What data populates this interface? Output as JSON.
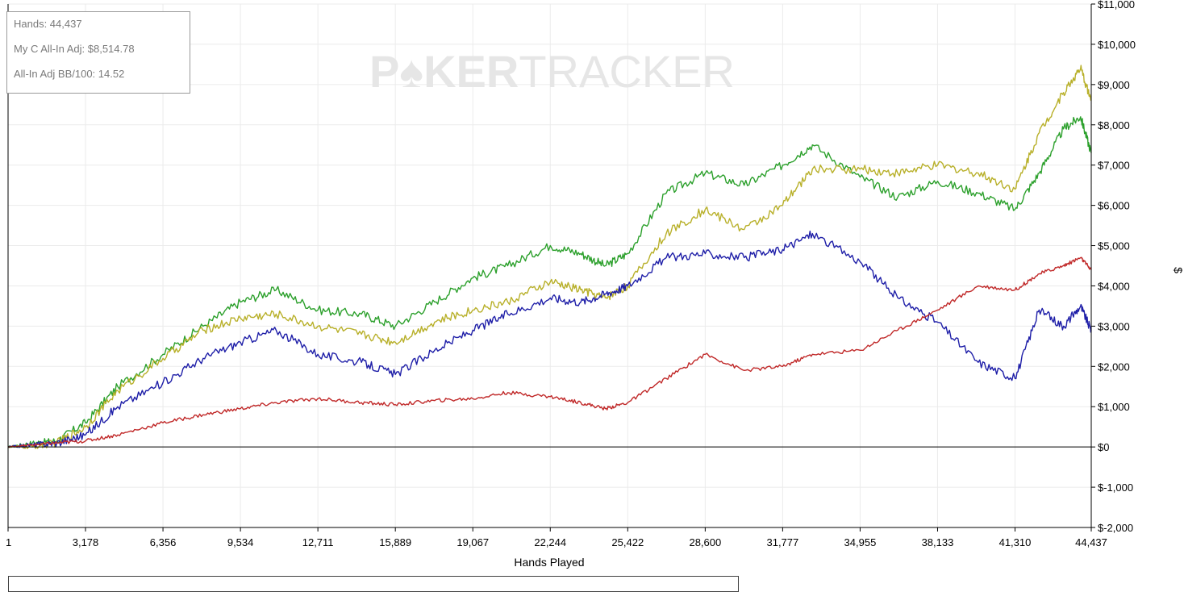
{
  "info_box": {
    "hands": "Hands: 44,437",
    "my_c_allin_adj": "My C All-In Adj: $8,514.78",
    "allin_adj_bb100": "All-In Adj BB/100: 14.52"
  },
  "watermark": {
    "bold_part": "P♠KER",
    "light_part": "TRACKER"
  },
  "chart_data": {
    "type": "line",
    "xlabel": "Hands Played",
    "ylabel": "$",
    "xlim": [
      1,
      44437
    ],
    "ylim": [
      -2000,
      11000
    ],
    "x_ticks": [
      1,
      3178,
      6356,
      9534,
      12711,
      15889,
      19067,
      22244,
      25422,
      28600,
      31777,
      34955,
      38133,
      41310,
      44437
    ],
    "x_tick_labels": [
      "1",
      "3,178",
      "6,356",
      "9,534",
      "12,711",
      "15,889",
      "19,067",
      "22,244",
      "25,422",
      "28,600",
      "31,777",
      "34,955",
      "38,133",
      "41,310",
      "44,437"
    ],
    "y_ticks": [
      -2000,
      -1000,
      0,
      1000,
      2000,
      3000,
      4000,
      5000,
      6000,
      7000,
      8000,
      9000,
      10000,
      11000
    ],
    "y_tick_labels": [
      "$-2,000",
      "$-1,000",
      "$0",
      "$1,000",
      "$2,000",
      "$3,000",
      "$4,000",
      "$5,000",
      "$6,000",
      "$7,000",
      "$8,000",
      "$9,000",
      "$10,000",
      "$11,000"
    ],
    "grid": true,
    "x": [
      1,
      1000,
      2000,
      3178,
      4500,
      6356,
      8000,
      9534,
      11000,
      12711,
      14500,
      15889,
      17500,
      19067,
      20500,
      22244,
      23500,
      24500,
      25422,
      27000,
      28600,
      30200,
      31777,
      33000,
      34955,
      36500,
      38133,
      39800,
      41310,
      42300,
      43300,
      44000,
      44437
    ],
    "series": [
      {
        "color": "#2ca02c",
        "values": [
          0,
          100,
          150,
          600,
          1500,
          2300,
          3000,
          3600,
          3900,
          3400,
          3300,
          3000,
          3600,
          4200,
          4500,
          5000,
          4800,
          4500,
          4800,
          6300,
          6800,
          6500,
          7000,
          7500,
          6700,
          6200,
          6600,
          6300,
          5900,
          6800,
          7900,
          8200,
          7300
        ]
      },
      {
        "color": "#b8b02a",
        "values": [
          0,
          0,
          100,
          500,
          1400,
          2200,
          2900,
          3200,
          3300,
          3000,
          2800,
          2600,
          3100,
          3400,
          3600,
          4100,
          3900,
          3700,
          4000,
          5300,
          5900,
          5400,
          6000,
          6900,
          6900,
          6800,
          7000,
          6800,
          6400,
          7800,
          8800,
          9400,
          8600
        ]
      },
      {
        "color": "#1f1fa8",
        "values": [
          0,
          50,
          100,
          300,
          1000,
          1600,
          2200,
          2600,
          2900,
          2300,
          2100,
          1800,
          2400,
          2900,
          3300,
          3700,
          3600,
          3800,
          4000,
          4700,
          4800,
          4700,
          4900,
          5300,
          4600,
          3700,
          3100,
          2100,
          1700,
          3400,
          3000,
          3500,
          2900
        ]
      },
      {
        "color": "#c02828",
        "values": [
          0,
          50,
          100,
          150,
          300,
          600,
          800,
          950,
          1100,
          1200,
          1100,
          1050,
          1150,
          1200,
          1350,
          1250,
          1100,
          950,
          1100,
          1700,
          2300,
          1900,
          2000,
          2300,
          2400,
          2900,
          3400,
          4000,
          3900,
          4300,
          4500,
          4700,
          4400
        ]
      }
    ]
  }
}
